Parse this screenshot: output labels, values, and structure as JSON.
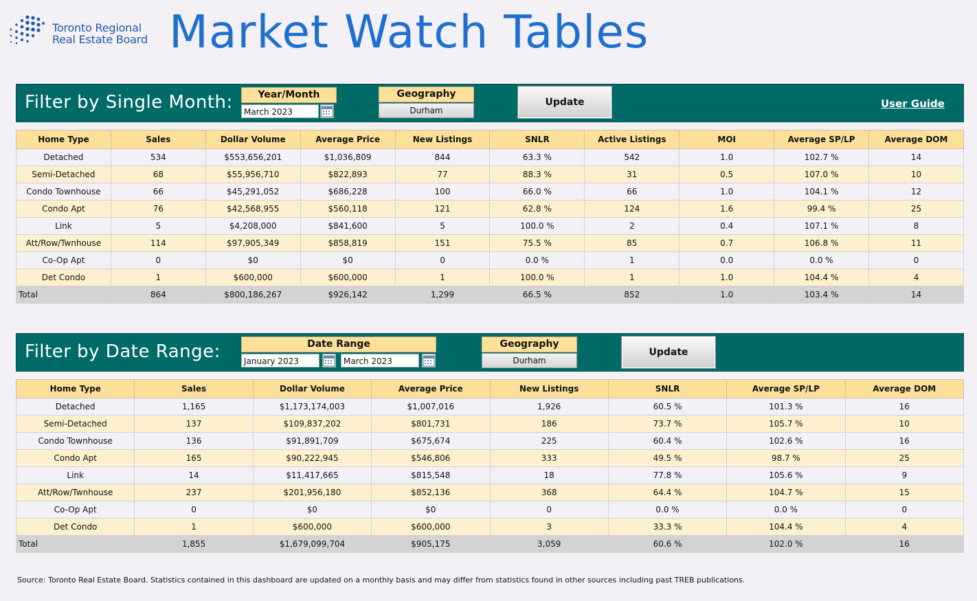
{
  "header": {
    "logo_line1": "Toronto Regional",
    "logo_line2": "Real Estate Board",
    "title": "Market Watch Tables"
  },
  "single_month": {
    "bar_title": "Filter by Single Month:",
    "year_month_label": "Year/Month",
    "year_month_value": "March 2023",
    "geography_label": "Geography",
    "geography_value": "Durham",
    "update_label": "Update",
    "user_guide_label": "User Guide",
    "columns": [
      "Home Type",
      "Sales",
      "Dollar Volume",
      "Average Price",
      "New Listings",
      "SNLR",
      "Active Listings",
      "MOI",
      "Average SP/LP",
      "Average DOM"
    ],
    "rows": [
      [
        "Detached",
        "534",
        "$553,656,201",
        "$1,036,809",
        "844",
        "63.3 %",
        "542",
        "1.0",
        "102.7 %",
        "14"
      ],
      [
        "Semi-Detached",
        "68",
        "$55,956,710",
        "$822,893",
        "77",
        "88.3 %",
        "31",
        "0.5",
        "107.0 %",
        "10"
      ],
      [
        "Condo Townhouse",
        "66",
        "$45,291,052",
        "$686,228",
        "100",
        "66.0 %",
        "66",
        "1.0",
        "104.1 %",
        "12"
      ],
      [
        "Condo Apt",
        "76",
        "$42,568,955",
        "$560,118",
        "121",
        "62.8 %",
        "124",
        "1.6",
        "99.4 %",
        "25"
      ],
      [
        "Link",
        "5",
        "$4,208,000",
        "$841,600",
        "5",
        "100.0 %",
        "2",
        "0.4",
        "107.1 %",
        "8"
      ],
      [
        "Att/Row/Twnhouse",
        "114",
        "$97,905,349",
        "$858,819",
        "151",
        "75.5 %",
        "85",
        "0.7",
        "106.8 %",
        "11"
      ],
      [
        "Co-Op Apt",
        "0",
        "$0",
        "$0",
        "0",
        "0.0 %",
        "1",
        "0.0",
        "0.0 %",
        "0"
      ],
      [
        "Det Condo",
        "1",
        "$600,000",
        "$600,000",
        "1",
        "100.0 %",
        "1",
        "1.0",
        "104.4 %",
        "4"
      ]
    ],
    "total": [
      "Total",
      "864",
      "$800,186,267",
      "$926,142",
      "1,299",
      "66.5 %",
      "852",
      "1.0",
      "103.4 %",
      "14"
    ]
  },
  "date_range": {
    "bar_title": "Filter by Date Range:",
    "date_range_label": "Date Range",
    "start_value": "January 2023",
    "end_value": "March 2023",
    "geography_label": "Geography",
    "geography_value": "Durham",
    "update_label": "Update",
    "columns": [
      "Home Type",
      "Sales",
      "Dollar Volume",
      "Average Price",
      "New Listings",
      "SNLR",
      "Average SP/LP",
      "Average DOM"
    ],
    "rows": [
      [
        "Detached",
        "1,165",
        "$1,173,174,003",
        "$1,007,016",
        "1,926",
        "60.5 %",
        "101.3 %",
        "16"
      ],
      [
        "Semi-Detached",
        "137",
        "$109,837,202",
        "$801,731",
        "186",
        "73.7 %",
        "105.7 %",
        "10"
      ],
      [
        "Condo Townhouse",
        "136",
        "$91,891,709",
        "$675,674",
        "225",
        "60.4 %",
        "102.6 %",
        "16"
      ],
      [
        "Condo Apt",
        "165",
        "$90,222,945",
        "$546,806",
        "333",
        "49.5 %",
        "98.7 %",
        "25"
      ],
      [
        "Link",
        "14",
        "$11,417,665",
        "$815,548",
        "18",
        "77.8 %",
        "105.6 %",
        "9"
      ],
      [
        "Att/Row/Twnhouse",
        "237",
        "$201,956,180",
        "$852,136",
        "368",
        "64.4 %",
        "104.7 %",
        "15"
      ],
      [
        "Co-Op Apt",
        "0",
        "$0",
        "$0",
        "0",
        "0.0 %",
        "0.0 %",
        "0"
      ],
      [
        "Det Condo",
        "1",
        "$600,000",
        "$600,000",
        "3",
        "33.3 %",
        "104.4 %",
        "4"
      ]
    ],
    "total": [
      "Total",
      "1,855",
      "$1,679,099,704",
      "$905,175",
      "3,059",
      "60.6 %",
      "102.0 %",
      "16"
    ]
  },
  "footer": {
    "source": "Source: Toronto Real Estate Board.  Statistics contained in this dashboard are updated on a monthly basis and may differ from statistics found in other sources including past TREB publications."
  },
  "colors": {
    "bar_bg": "#006a66",
    "header_yellow": "#fde09a",
    "row_alt": "#fdf0cf",
    "title_blue": "#1f6fd1"
  }
}
